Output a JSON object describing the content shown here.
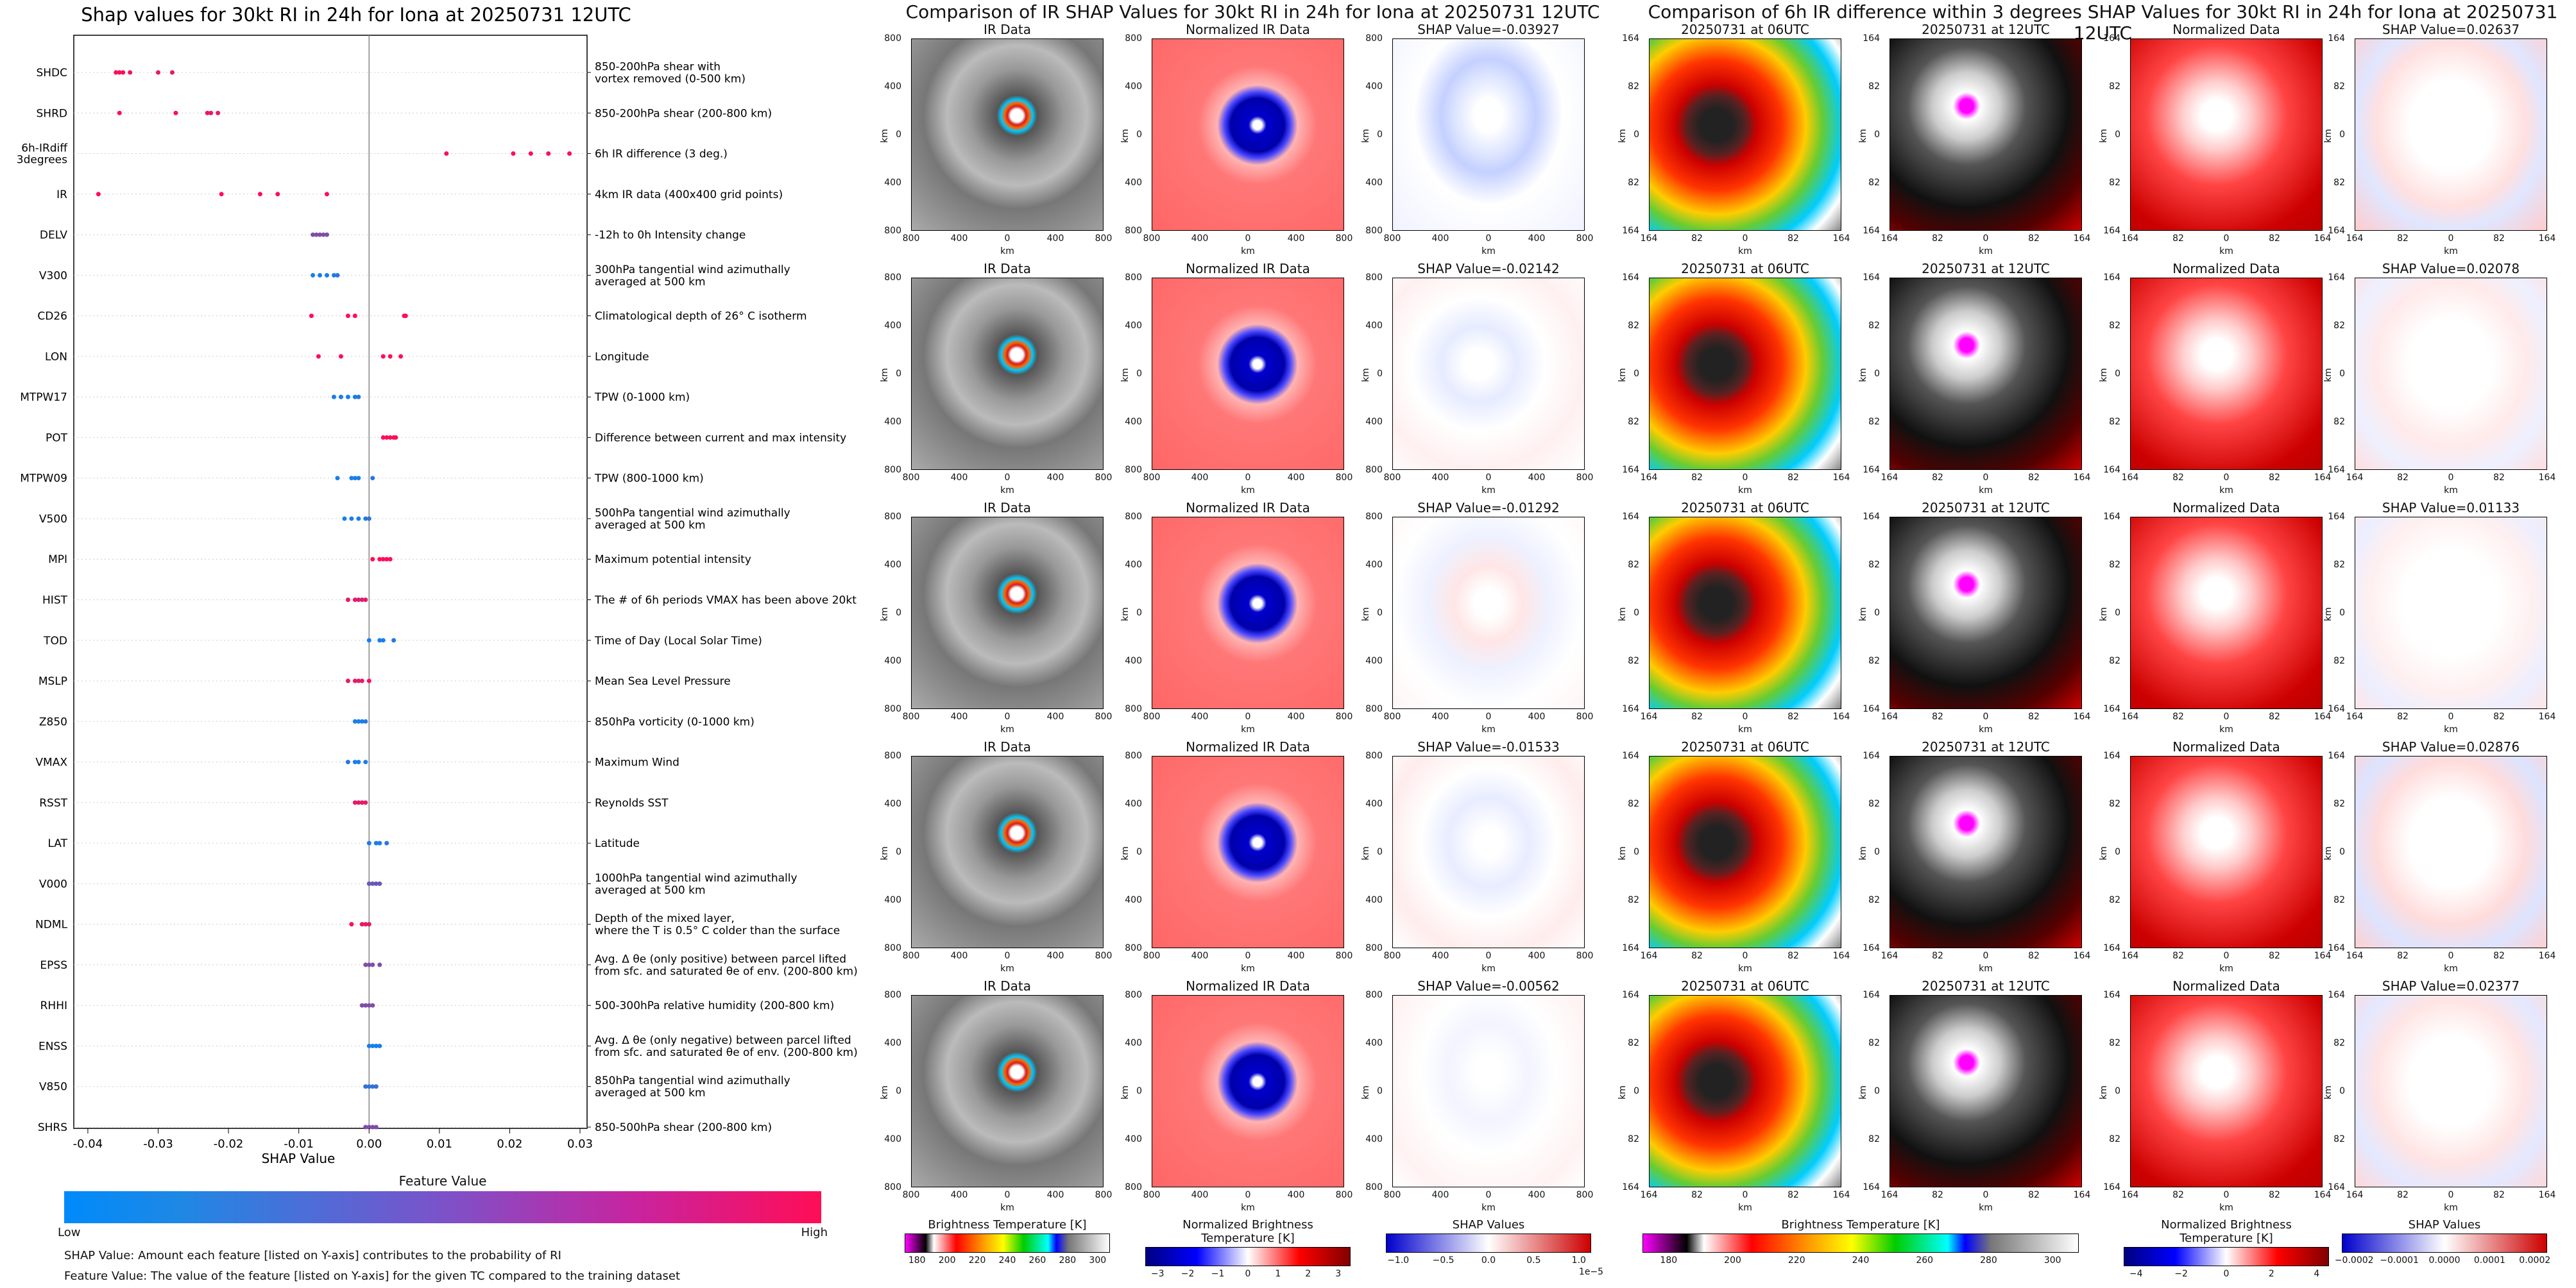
{
  "left": {
    "chart_data": {
      "type": "scatter",
      "title": "Shap values for 30kt RI in 24h for Iona at 20250731 12UTC",
      "xlabel": "SHAP Value",
      "xlim": [
        -0.042,
        0.031
      ],
      "xticks": [
        "-0.04",
        "-0.03",
        "-0.02",
        "-0.01",
        "0.00",
        "0.01",
        "0.02",
        "0.03"
      ],
      "xtick_values": [
        -0.04,
        -0.03,
        -0.02,
        -0.01,
        0.0,
        0.01,
        0.02,
        0.03
      ],
      "features": [
        {
          "name": "SHDC",
          "desc": "850-200hPa shear with\nvortex removed (0-500 km)",
          "points": [
            [
              -0.036,
              1
            ],
            [
              -0.0355,
              1
            ],
            [
              -0.035,
              0.95
            ],
            [
              -0.034,
              0.95
            ],
            [
              -0.03,
              0.9
            ],
            [
              -0.028,
              0.9
            ]
          ]
        },
        {
          "name": "SHRD",
          "desc": "850-200hPa shear (200-800 km)",
          "points": [
            [
              -0.0355,
              1
            ],
            [
              -0.0275,
              1
            ],
            [
              -0.023,
              0.95
            ],
            [
              -0.0225,
              0.9
            ],
            [
              -0.0215,
              0.9
            ]
          ]
        },
        {
          "name": "6h-IRdiff\n3degrees",
          "desc": "6h IR difference (3 deg.)",
          "points": [
            [
              0.011,
              1
            ],
            [
              0.0205,
              1
            ],
            [
              0.023,
              1
            ],
            [
              0.0255,
              1
            ],
            [
              0.0285,
              1
            ]
          ]
        },
        {
          "name": "IR",
          "desc": "4km IR data (400x400 grid points)",
          "points": [
            [
              -0.0385,
              1
            ],
            [
              -0.021,
              1
            ],
            [
              -0.0155,
              1
            ],
            [
              -0.013,
              1
            ],
            [
              -0.006,
              1
            ]
          ]
        },
        {
          "name": "DELV",
          "desc": "-12h to 0h Intensity change",
          "points": [
            [
              -0.008,
              0.5
            ],
            [
              -0.0075,
              0.5
            ],
            [
              -0.007,
              0.5
            ],
            [
              -0.0065,
              0.5
            ],
            [
              -0.006,
              0.5
            ]
          ]
        },
        {
          "name": "V300",
          "desc": "300hPa tangential wind azimuthally\naveraged at 500 km",
          "points": [
            [
              -0.008,
              0.1
            ],
            [
              -0.007,
              0.1
            ],
            [
              -0.006,
              0.1
            ],
            [
              -0.005,
              0.1
            ],
            [
              -0.0045,
              0.15
            ]
          ]
        },
        {
          "name": "CD26",
          "desc": "Climatological depth of 26° C isotherm",
          "points": [
            [
              -0.0082,
              1
            ],
            [
              -0.003,
              1
            ],
            [
              -0.002,
              1
            ],
            [
              0.005,
              1
            ],
            [
              0.0052,
              1
            ]
          ]
        },
        {
          "name": "LON",
          "desc": "Longitude",
          "points": [
            [
              -0.0072,
              1
            ],
            [
              -0.004,
              1
            ],
            [
              0.002,
              1
            ],
            [
              0.003,
              1
            ],
            [
              0.0045,
              1
            ]
          ]
        },
        {
          "name": "MTPW17",
          "desc": "TPW (0-1000 km)",
          "points": [
            [
              -0.005,
              0.1
            ],
            [
              -0.004,
              0.1
            ],
            [
              -0.003,
              0.1
            ],
            [
              -0.002,
              0.1
            ],
            [
              -0.0015,
              0.15
            ]
          ]
        },
        {
          "name": "POT",
          "desc": "Difference between current and max intensity",
          "points": [
            [
              0.002,
              1
            ],
            [
              0.0025,
              1
            ],
            [
              0.003,
              1
            ],
            [
              0.0035,
              1
            ],
            [
              0.0038,
              1
            ]
          ]
        },
        {
          "name": "MTPW09",
          "desc": "TPW (800-1000 km)",
          "points": [
            [
              -0.0045,
              0.1
            ],
            [
              -0.0025,
              0.1
            ],
            [
              -0.002,
              0.1
            ],
            [
              -0.0015,
              0.1
            ],
            [
              0.0005,
              0.15
            ]
          ]
        },
        {
          "name": "V500",
          "desc": "500hPa tangential wind azimuthally\naveraged at 500 km",
          "points": [
            [
              -0.0035,
              0.1
            ],
            [
              -0.0025,
              0.1
            ],
            [
              -0.0015,
              0.1
            ],
            [
              -0.0005,
              0.15
            ],
            [
              0.0,
              0.2
            ]
          ]
        },
        {
          "name": "MPI",
          "desc": "Maximum potential intensity",
          "points": [
            [
              0.0005,
              1
            ],
            [
              0.0015,
              1
            ],
            [
              0.002,
              1
            ],
            [
              0.0025,
              1
            ],
            [
              0.003,
              1
            ]
          ]
        },
        {
          "name": "HIST",
          "desc": "The # of 6h periods VMAX has been above 20kt",
          "points": [
            [
              -0.003,
              0.9
            ],
            [
              -0.002,
              0.9
            ],
            [
              -0.0015,
              0.85
            ],
            [
              -0.001,
              0.85
            ],
            [
              -0.0005,
              0.9
            ]
          ]
        },
        {
          "name": "TOD",
          "desc": "Time of Day (Local Solar Time)",
          "points": [
            [
              0.0,
              0.1
            ],
            [
              0.0015,
              0.1
            ],
            [
              0.002,
              0.1
            ],
            [
              0.0035,
              0.15
            ]
          ]
        },
        {
          "name": "MSLP",
          "desc": "Mean Sea Level Pressure",
          "points": [
            [
              -0.003,
              0.9
            ],
            [
              -0.002,
              0.9
            ],
            [
              -0.0015,
              0.9
            ],
            [
              -0.001,
              0.9
            ],
            [
              0.0,
              1
            ]
          ]
        },
        {
          "name": "Z850",
          "desc": "850hPa vorticity (0-1000 km)",
          "points": [
            [
              -0.002,
              0.1
            ],
            [
              -0.0015,
              0.1
            ],
            [
              -0.001,
              0.1
            ],
            [
              -0.0005,
              0.15
            ]
          ]
        },
        {
          "name": "VMAX",
          "desc": "Maximum Wind",
          "points": [
            [
              -0.003,
              0.15
            ],
            [
              -0.002,
              0.1
            ],
            [
              -0.0015,
              0.1
            ],
            [
              -0.0005,
              0.1
            ]
          ]
        },
        {
          "name": "RSST",
          "desc": "Reynolds SST",
          "points": [
            [
              -0.002,
              0.9
            ],
            [
              -0.0015,
              0.9
            ],
            [
              -0.001,
              0.9
            ],
            [
              -0.0005,
              0.9
            ]
          ]
        },
        {
          "name": "LAT",
          "desc": "Latitude",
          "points": [
            [
              0.0,
              0.1
            ],
            [
              0.001,
              0.1
            ],
            [
              0.0015,
              0.1
            ],
            [
              0.0025,
              0.15
            ]
          ]
        },
        {
          "name": "V000",
          "desc": "1000hPa tangential wind azimuthally\naveraged at 500 km",
          "points": [
            [
              0.0,
              0.4
            ],
            [
              0.0005,
              0.4
            ],
            [
              0.001,
              0.4
            ],
            [
              0.0015,
              0.4
            ]
          ]
        },
        {
          "name": "NDML",
          "desc": "Depth of the mixed layer,\nwhere the T is 0.5° C colder than the surface",
          "points": [
            [
              -0.0025,
              1
            ],
            [
              -0.001,
              0.95
            ],
            [
              -0.0005,
              0.9
            ],
            [
              0.0,
              0.9
            ]
          ]
        },
        {
          "name": "EPSS",
          "desc": "Avg. Δ θe (only positive) between parcel lifted\nfrom sfc. and saturated θe of env. (200-800 km)",
          "points": [
            [
              -0.0005,
              0.5
            ],
            [
              0.0,
              0.5
            ],
            [
              0.0005,
              0.5
            ],
            [
              0.0015,
              0.5
            ]
          ]
        },
        {
          "name": "RHHI",
          "desc": "500-300hPa relative humidity (200-800 km)",
          "points": [
            [
              -0.001,
              0.5
            ],
            [
              -0.0005,
              0.5
            ],
            [
              0.0,
              0.5
            ],
            [
              0.0005,
              0.5
            ]
          ]
        },
        {
          "name": "ENSS",
          "desc": "Avg. Δ θe (only negative) between parcel lifted\nfrom sfc. and saturated θe of env. (200-800 km)",
          "points": [
            [
              0.0,
              0.1
            ],
            [
              0.0005,
              0.1
            ],
            [
              0.001,
              0.1
            ],
            [
              0.0015,
              0.1
            ]
          ]
        },
        {
          "name": "V850",
          "desc": "850hPa tangential wind azimuthally\naveraged at 500 km",
          "points": [
            [
              -0.0005,
              0.2
            ],
            [
              0.0,
              0.2
            ],
            [
              0.0005,
              0.2
            ],
            [
              0.001,
              0.2
            ]
          ]
        },
        {
          "name": "SHRS",
          "desc": "850-500hPa shear (200-800 km)",
          "points": [
            [
              -0.0005,
              0.5
            ],
            [
              0.0,
              0.5
            ],
            [
              0.0005,
              0.5
            ],
            [
              0.001,
              0.5
            ]
          ]
        }
      ],
      "colorbar": {
        "label": "Feature Value",
        "low": "Low",
        "high": "High",
        "low_color": "#1e88e5",
        "high_color": "#ff0d57"
      }
    },
    "footnotes": [
      "SHAP Value: Amount each feature [listed on Y-axis] contributes to the probability of RI",
      "Feature Value: The value of the feature [listed on Y-axis] for the given TC compared to the training dataset"
    ]
  },
  "mid": {
    "title": "Comparison of IR SHAP Values for 30kt RI in 24h for Iona at 20250731 12UTC",
    "col_titles": [
      "IR Data",
      "Normalized IR Data"
    ],
    "shap_titles": [
      "SHAP Value=-0.03927",
      "SHAP Value=-0.02142",
      "SHAP Value=-0.01292",
      "SHAP Value=-0.01533",
      "SHAP Value=-0.00562"
    ],
    "yticks": [
      "800",
      "400",
      "0",
      "400",
      "800"
    ],
    "xticks": [
      "800",
      "400",
      "0",
      "400",
      "800"
    ],
    "axis_unit": "km",
    "colorbars": [
      {
        "label": "Brightness Temperature [K]",
        "ticks": [
          "180",
          "200",
          "220",
          "240",
          "260",
          "280",
          "300"
        ]
      },
      {
        "label": "Normalized Brightness Temperature [K]",
        "ticks": [
          "−3",
          "−2",
          "−1",
          "0",
          "1",
          "2",
          "3"
        ]
      },
      {
        "label": "SHAP Values",
        "ticks": [
          "−1.0",
          "−0.5",
          "0.0",
          "0.5",
          "1.0"
        ],
        "offset": "1e−5"
      }
    ]
  },
  "right": {
    "title": "Comparison of 6h IR difference within 3 degrees SHAP Values for 30kt RI in 24h for Iona at 20250731 12UTC",
    "col_titles": [
      "20250731 at 06UTC",
      "20250731 at 12UTC",
      "Normalized Data"
    ],
    "shap_titles": [
      "SHAP Value=0.02637",
      "SHAP Value=0.02078",
      "SHAP Value=0.01133",
      "SHAP Value=0.02876",
      "SHAP Value=0.02377"
    ],
    "yticks": [
      "164",
      "82",
      "0",
      "82",
      "164"
    ],
    "xticks": [
      "164",
      "82",
      "0",
      "82",
      "164"
    ],
    "axis_unit": "km",
    "colorbars": [
      {
        "label": "Brightness Temperature [K]",
        "ticks": [
          "180",
          "200",
          "220",
          "240",
          "260",
          "280",
          "300"
        ]
      },
      {
        "label": "Normalized Brightness Temperature [K]",
        "ticks": [
          "−4",
          "−2",
          "0",
          "2",
          "4"
        ]
      },
      {
        "label": "SHAP Values",
        "ticks": [
          "−0.0002",
          "−0.0001",
          "0.0000",
          "0.0001",
          "0.0002"
        ]
      }
    ]
  }
}
